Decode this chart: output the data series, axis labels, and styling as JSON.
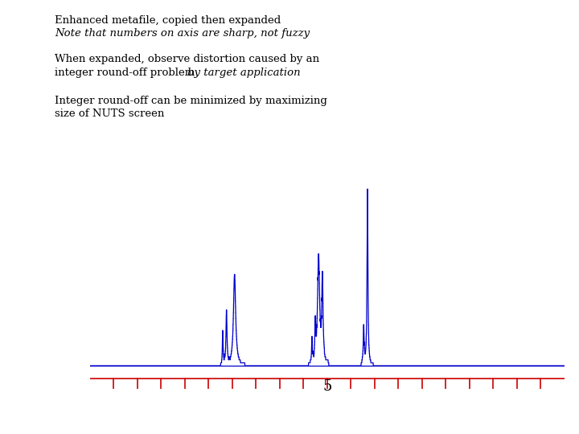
{
  "title_line1": "Enhanced metafile, copied then expanded",
  "title_line2": "Note that numbers on axis are sharp, not fuzzy",
  "body_line1": "When expanded, observe distortion caused by an",
  "body_line2": "integer round-off problem ",
  "body_italic": "by target application",
  "body_line3": "Integer round-off can be minimized by maximizing",
  "body_line4": "size of NUTS screen",
  "spectrum_color": "#0000CC",
  "axis_color": "#CC0000",
  "background_color": "#FFFFFF",
  "tick_label": "5",
  "xmin": 0.0,
  "xmax": 10.0,
  "ymin": -0.03,
  "ymax": 1.05
}
